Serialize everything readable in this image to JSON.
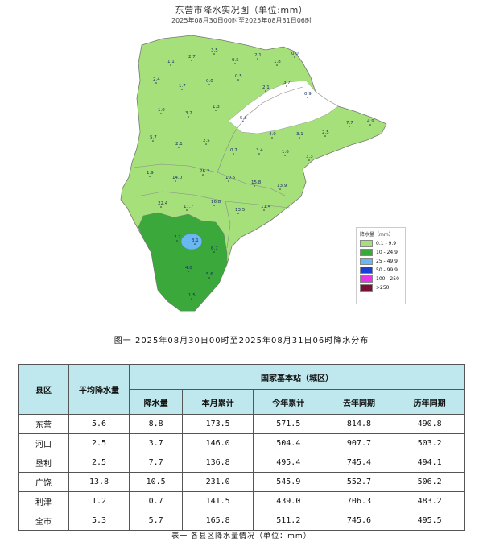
{
  "map": {
    "title": "东营市降水实况图（单位:mm）",
    "subtitle": "2025年08月30日00时至2025年08月31日06时",
    "station_values": [
      "1.1",
      "2.7",
      "3.5",
      "0.5",
      "2.1",
      "1.8",
      "0.0",
      "2.4",
      "1.7",
      "0.0",
      "0.5",
      "2.1",
      "3.7",
      "0.9",
      "1.0",
      "3.2",
      "1.3",
      "5.6",
      "4.0",
      "3.1",
      "2.5",
      "7.7",
      "4.9",
      "5.7",
      "2.1",
      "2.5",
      "0.7",
      "3.4",
      "1.6",
      "3.3",
      "1.9",
      "14.0",
      "26.2",
      "10.5",
      "15.8",
      "13.9",
      "22.4",
      "17.7",
      "16.8",
      "13.5",
      "11.4",
      "2.2",
      "3.1",
      "6.7",
      "4.0",
      "5.6",
      "1.5"
    ],
    "legend": {
      "title": "降水量（mm）",
      "items": [
        {
          "label": "0.1 - 9.9",
          "color": "#a6e07a"
        },
        {
          "label": "10 - 24.9",
          "color": "#3aa83a"
        },
        {
          "label": "25 - 49.9",
          "color": "#6ab8f0"
        },
        {
          "label": "50 - 99.9",
          "color": "#1b3fd6"
        },
        {
          "label": "100 - 250",
          "color": "#e636e6"
        },
        {
          "label": ">250",
          "color": "#7a1030"
        }
      ]
    }
  },
  "figure_caption": "图一 2025年08月30日00时至2025年08月31日06时降水分布",
  "table": {
    "headers": {
      "county": "县区",
      "avg": "平均降水量",
      "group": "国家基本站（城区）",
      "rain": "降水量",
      "month": "本月累计",
      "year": "今年累计",
      "last_year": "去年同期",
      "history": "历年同期"
    },
    "rows": [
      {
        "county": "东营",
        "avg": "5.6",
        "rain": "8.8",
        "month": "173.5",
        "year": "571.5",
        "last_year": "814.8",
        "history": "490.8"
      },
      {
        "county": "河口",
        "avg": "2.5",
        "rain": "3.7",
        "month": "146.0",
        "year": "504.4",
        "last_year": "907.7",
        "history": "503.2"
      },
      {
        "county": "垦利",
        "avg": "2.5",
        "rain": "7.7",
        "month": "136.8",
        "year": "495.4",
        "last_year": "745.4",
        "history": "494.1"
      },
      {
        "county": "广饶",
        "avg": "13.8",
        "rain": "10.5",
        "month": "231.0",
        "year": "545.9",
        "last_year": "552.7",
        "history": "506.2"
      },
      {
        "county": "利津",
        "avg": "1.2",
        "rain": "0.7",
        "month": "141.5",
        "year": "439.0",
        "last_year": "706.3",
        "history": "483.2"
      },
      {
        "county": "全市",
        "avg": "5.3",
        "rain": "5.7",
        "month": "165.8",
        "year": "511.2",
        "last_year": "745.6",
        "history": "495.5"
      }
    ],
    "caption": "表一 各县区降水量情况（单位：mm）"
  }
}
